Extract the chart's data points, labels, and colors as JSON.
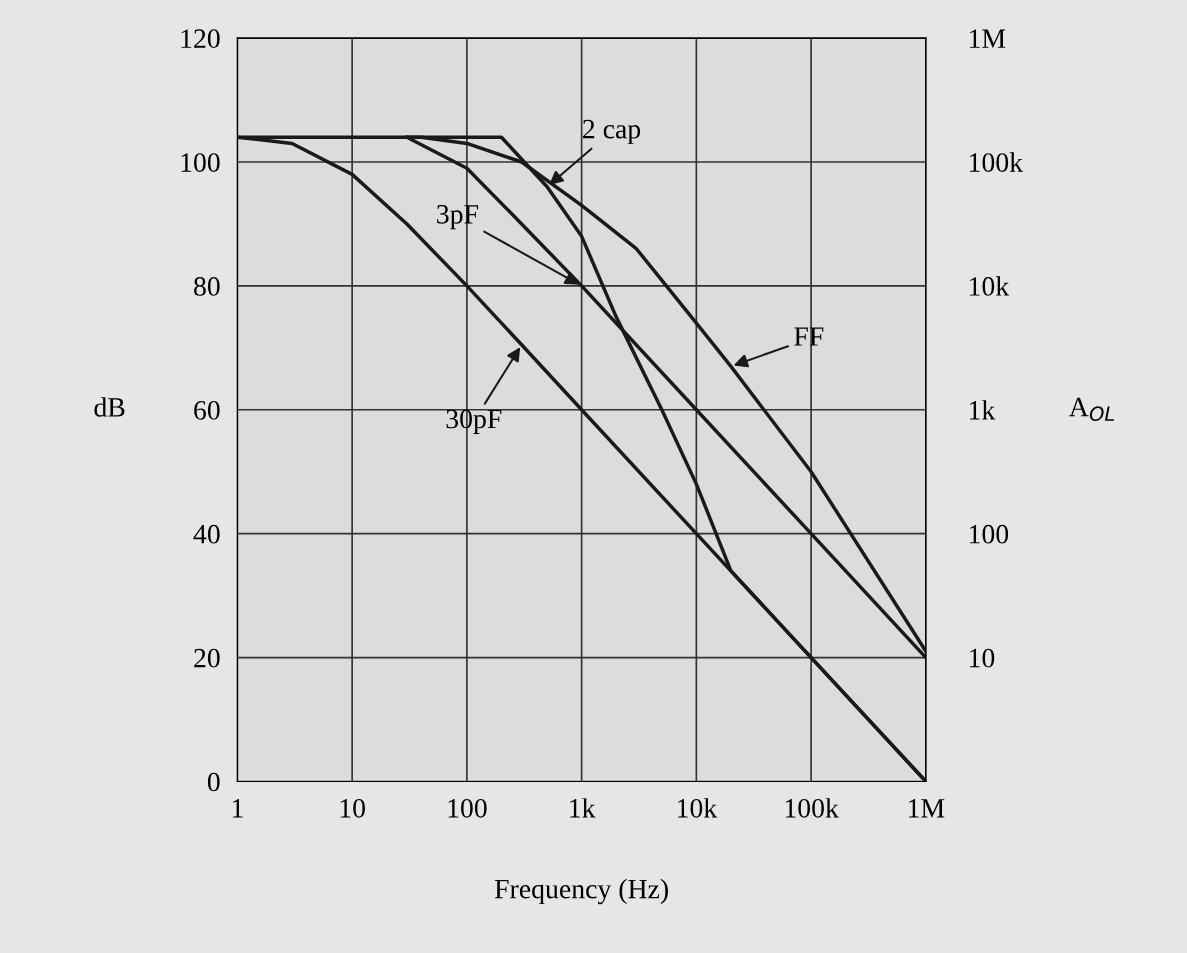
{
  "chart_data": {
    "type": "line",
    "xlabel": "Frequency (Hz)",
    "ylabel": "dB",
    "y2label": "A$_{OL}$",
    "log": "x",
    "xlim": [
      1,
      1000000
    ],
    "xticks": [
      {
        "value": 1,
        "label": "1"
      },
      {
        "value": 10,
        "label": "10"
      },
      {
        "value": 100,
        "label": "100"
      },
      {
        "value": 1000,
        "label": "1k"
      },
      {
        "value": 10000,
        "label": "10k"
      },
      {
        "value": 100000,
        "label": "100k"
      },
      {
        "value": 1000000,
        "label": "1M"
      }
    ],
    "ylim": [
      0,
      120
    ],
    "yticks": [
      0,
      20,
      40,
      60,
      80,
      100,
      120
    ],
    "grid": true,
    "series": [
      {
        "color": "#1a1a1a",
        "x": [
          1,
          3,
          10,
          30,
          100,
          300,
          1000,
          10000,
          100000,
          1000000
        ],
        "values": [
          104,
          103,
          98,
          90,
          80,
          70.5,
          60,
          40,
          20,
          0
        ]
      },
      {
        "color": "#1a1a1a",
        "x": [
          1,
          30,
          100,
          300,
          1000,
          10000,
          100000,
          1000000
        ],
        "values": [
          104,
          104,
          99,
          90,
          80,
          60,
          40,
          20
        ]
      },
      {
        "color": "#1a1a1a",
        "x": [
          30,
          200,
          500,
          1000,
          2000,
          5000,
          10000,
          20000,
          100000,
          1000000
        ],
        "values": [
          104,
          104,
          96,
          88,
          75,
          60,
          48,
          34,
          20,
          0
        ]
      },
      {
        "color": "#1a1a1a",
        "x": [
          30,
          40,
          100,
          300,
          1000,
          3000,
          10000,
          20000,
          100000,
          1000000
        ],
        "values": [
          104,
          104,
          103,
          100,
          93,
          86,
          74,
          67,
          50,
          21
        ]
      }
    ],
    "annotations": [
      {
        "text": "2 cap",
        "x": 500,
        "y": 96
      },
      {
        "text": "3pF",
        "x": 1000,
        "y": 80
      },
      {
        "text": "30pF",
        "x": 300,
        "y": 70.5
      },
      {
        "text": "FF",
        "x": 20000,
        "y": 67
      },
      "10",
      "100",
      "1k",
      "10k",
      "100k",
      "1M"
    ]
  }
}
